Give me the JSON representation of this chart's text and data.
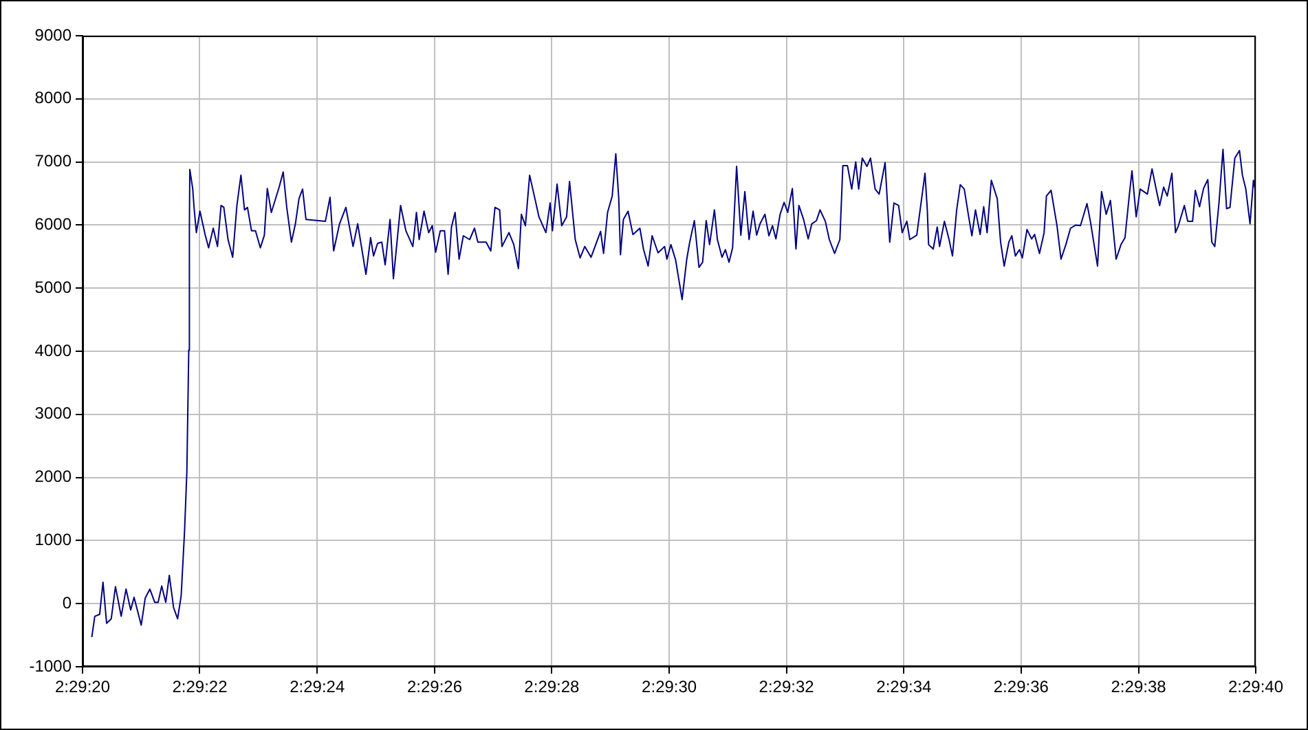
{
  "chart_data": {
    "type": "line",
    "grid": true,
    "legend": false,
    "marker": "none",
    "line_style": "solid",
    "xlim": [
      2.488889,
      2.494444
    ],
    "xticks": [
      {
        "value": 2.488889,
        "label": "2:29:20"
      },
      {
        "value": 2.489444,
        "label": "2:29:22"
      },
      {
        "value": 2.49,
        "label": "2:29:24"
      },
      {
        "value": 2.490556,
        "label": "2:29:26"
      },
      {
        "value": 2.491111,
        "label": "2:29:28"
      },
      {
        "value": 2.491667,
        "label": "2:29:30"
      },
      {
        "value": 2.492222,
        "label": "2:29:32"
      },
      {
        "value": 2.492778,
        "label": "2:29:34"
      },
      {
        "value": 2.493333,
        "label": "2:29:36"
      },
      {
        "value": 2.493889,
        "label": "2:29:38"
      },
      {
        "value": 2.494444,
        "label": "2:29:40"
      }
    ],
    "ylim": [
      -1000,
      9000
    ],
    "yticks": [
      -1000,
      0,
      1000,
      2000,
      3000,
      4000,
      5000,
      6000,
      7000,
      8000,
      9000
    ],
    "x": [
      2.488933,
      2.488947,
      2.48897,
      2.488986,
      2.489003,
      2.489025,
      2.489045,
      2.489072,
      2.489095,
      2.489117,
      2.489133,
      2.489167,
      2.489186,
      2.489208,
      2.489231,
      2.489247,
      2.489264,
      2.489283,
      2.4893,
      2.48932,
      2.489339,
      2.489356,
      2.489372,
      2.489383,
      2.489392,
      2.489395,
      2.489397,
      2.489411,
      2.489417,
      2.489428,
      2.489445,
      2.48947,
      2.489486,
      2.489508,
      2.489528,
      2.489545,
      2.489558,
      2.489578,
      2.4896,
      2.48962,
      2.489639,
      2.489656,
      2.48967,
      2.489689,
      2.489708,
      2.489731,
      2.48975,
      2.489764,
      2.489783,
      2.48982,
      2.489839,
      2.489856,
      2.489878,
      2.489897,
      2.489914,
      2.489931,
      2.489947,
      2.490039,
      2.490061,
      2.490078,
      2.490106,
      2.490136,
      2.49017,
      2.490192,
      2.490231,
      2.490253,
      2.490267,
      2.490286,
      2.490306,
      2.490322,
      2.490345,
      2.490361,
      2.490395,
      2.49042,
      2.490453,
      2.49047,
      2.490483,
      2.490506,
      2.490528,
      2.490545,
      2.490561,
      2.490583,
      2.490603,
      2.49062,
      2.490636,
      2.490653,
      2.490672,
      2.490692,
      2.490722,
      2.490745,
      2.490761,
      2.4908,
      2.490822,
      2.490842,
      2.490864,
      2.490875,
      2.490908,
      2.490931,
      2.490953,
      2.490967,
      2.490986,
      2.491006,
      2.491033,
      2.49105,
      2.491083,
      2.491103,
      2.491114,
      2.491136,
      2.491158,
      2.491181,
      2.491195,
      2.491222,
      2.491245,
      2.491267,
      2.491297,
      2.491342,
      2.491356,
      2.491375,
      2.491397,
      2.491414,
      2.491428,
      2.491436,
      2.49145,
      2.491472,
      2.491495,
      2.491528,
      2.491545,
      2.491567,
      2.491586,
      2.491614,
      2.491645,
      2.491656,
      2.491675,
      2.491697,
      2.491728,
      2.49175,
      2.491764,
      2.491786,
      2.491808,
      2.491825,
      2.491842,
      2.491858,
      2.491881,
      2.491895,
      2.491917,
      2.491933,
      2.49195,
      2.491967,
      2.491986,
      2.492006,
      2.492025,
      2.492045,
      2.492064,
      2.492081,
      2.492097,
      2.49212,
      2.492139,
      2.492156,
      2.492172,
      2.492192,
      2.492211,
      2.492228,
      2.49225,
      2.492267,
      2.492281,
      2.492303,
      2.492325,
      2.492342,
      2.492364,
      2.492381,
      2.492406,
      2.492425,
      2.49245,
      2.492475,
      2.492489,
      2.492511,
      2.492531,
      2.49255,
      2.492564,
      2.492581,
      2.492603,
      2.49262,
      2.492642,
      2.492661,
      2.492689,
      2.492711,
      2.492731,
      2.492753,
      2.49277,
      2.492792,
      2.492806,
      2.492839,
      2.492878,
      2.492889,
      2.492895,
      2.492917,
      2.492936,
      2.492947,
      2.49297,
      2.492992,
      2.493008,
      2.493028,
      2.493045,
      2.493064,
      2.493083,
      2.4931,
      2.493117,
      2.493139,
      2.493156,
      2.493172,
      2.493192,
      2.49322,
      2.493236,
      2.493253,
      2.493275,
      2.493289,
      2.493306,
      2.493325,
      2.493339,
      2.493361,
      2.493383,
      2.493397,
      2.49342,
      2.493442,
      2.493453,
      2.493475,
      2.493503,
      2.493522,
      2.493545,
      2.493567,
      2.493592,
      2.493614,
      2.493645,
      2.493661,
      2.493695,
      2.493714,
      2.493736,
      2.493756,
      2.493783,
      2.493806,
      2.493825,
      2.493845,
      2.493858,
      2.493878,
      2.493897,
      2.493931,
      2.493953,
      2.493975,
      2.493989,
      2.494008,
      2.494025,
      2.494047,
      2.494064,
      2.494078,
      2.494106,
      2.494122,
      2.494145,
      2.494158,
      2.494178,
      2.494197,
      2.494217,
      2.494236,
      2.49425,
      2.49427,
      2.494289,
      2.494306,
      2.494322,
      2.494345,
      2.494367,
      2.494381,
      2.494397,
      2.494417,
      2.494433,
      2.494441
    ],
    "series": [
      {
        "color": "#000080",
        "values": [
          -530,
          -200,
          -170,
          340,
          -310,
          -240,
          270,
          -200,
          230,
          -100,
          100,
          -340,
          90,
          230,
          20,
          20,
          280,
          20,
          450,
          -60,
          -240,
          120,
          1140,
          2090,
          4020,
          5950,
          6880,
          6570,
          6280,
          5880,
          6220,
          5840,
          5640,
          5950,
          5660,
          6310,
          6280,
          5770,
          5490,
          6310,
          6790,
          6240,
          6280,
          5910,
          5910,
          5640,
          5840,
          6580,
          6200,
          6600,
          6840,
          6280,
          5730,
          6020,
          6420,
          6570,
          6090,
          6060,
          6440,
          5590,
          6020,
          6280,
          5660,
          6020,
          5220,
          5800,
          5510,
          5710,
          5730,
          5370,
          6090,
          5150,
          6310,
          5910,
          5660,
          6200,
          5770,
          6220,
          5880,
          5990,
          5570,
          5910,
          5910,
          5220,
          5970,
          6200,
          5460,
          5830,
          5770,
          5950,
          5730,
          5730,
          5590,
          6280,
          6240,
          5660,
          5880,
          5690,
          5310,
          6170,
          5990,
          6790,
          6390,
          6130,
          5880,
          6350,
          5910,
          6650,
          5990,
          6130,
          6690,
          5770,
          5480,
          5660,
          5490,
          5900,
          5550,
          6200,
          6460,
          7130,
          6420,
          5530,
          6090,
          6220,
          5850,
          5950,
          5620,
          5350,
          5830,
          5560,
          5660,
          5460,
          5690,
          5450,
          4820,
          5460,
          5730,
          6070,
          5330,
          5410,
          6070,
          5690,
          6240,
          5770,
          5490,
          5610,
          5410,
          5640,
          6930,
          5840,
          6530,
          5770,
          6220,
          5840,
          6020,
          6170,
          5830,
          5990,
          5780,
          6170,
          6360,
          6200,
          6580,
          5620,
          6310,
          6090,
          5780,
          6020,
          6070,
          6240,
          6060,
          5770,
          5550,
          5770,
          6940,
          6940,
          6570,
          7000,
          6570,
          7060,
          6930,
          7060,
          6570,
          6490,
          6990,
          5730,
          6350,
          6310,
          5880,
          6060,
          5770,
          5840,
          6820,
          6240,
          5690,
          5620,
          5970,
          5660,
          6060,
          5770,
          5510,
          6240,
          6640,
          6570,
          6170,
          5830,
          6240,
          5850,
          6290,
          5880,
          6710,
          6420,
          5730,
          5350,
          5730,
          5830,
          5510,
          5610,
          5480,
          5930,
          5780,
          5850,
          5550,
          5880,
          6460,
          6550,
          5990,
          5460,
          5690,
          5950,
          6000,
          5990,
          6340,
          6060,
          5350,
          6530,
          6170,
          6390,
          5460,
          5690,
          5800,
          6460,
          6860,
          6130,
          6570,
          6490,
          6890,
          6530,
          6310,
          6600,
          6460,
          6820,
          5880,
          5990,
          6310,
          6060,
          6060,
          6550,
          6290,
          6580,
          6720,
          5730,
          5660,
          6350,
          7200,
          6260,
          6280,
          7060,
          7180,
          6790,
          6570,
          6020,
          6710,
          6570
        ]
      }
    ]
  }
}
